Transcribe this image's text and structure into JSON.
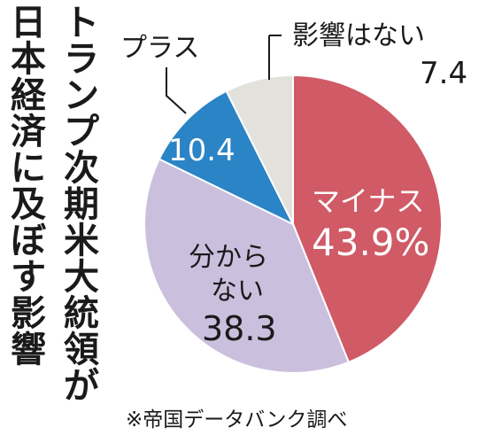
{
  "title": {
    "line1": "トランプ次期米大統領が",
    "line2": "日本経済に及ぼす影響"
  },
  "source": "※帝国データバンク調べ",
  "chart_data": {
    "type": "pie",
    "title": "トランプ次期米大統領が日本経済に及ぼす影響",
    "unit": "%",
    "slices": [
      {
        "label": "マイナス",
        "value": 43.9,
        "value_text": "43.9%",
        "color": "#d05a66"
      },
      {
        "label": "分からない",
        "value": 38.3,
        "value_text": "38.3",
        "color": "#cbbfde"
      },
      {
        "label": "プラス",
        "value": 10.4,
        "value_text": "10.4",
        "color": "#2a84c6"
      },
      {
        "label": "影響はない",
        "value": 7.4,
        "value_text": "7.4",
        "color": "#e3e1db"
      }
    ]
  }
}
